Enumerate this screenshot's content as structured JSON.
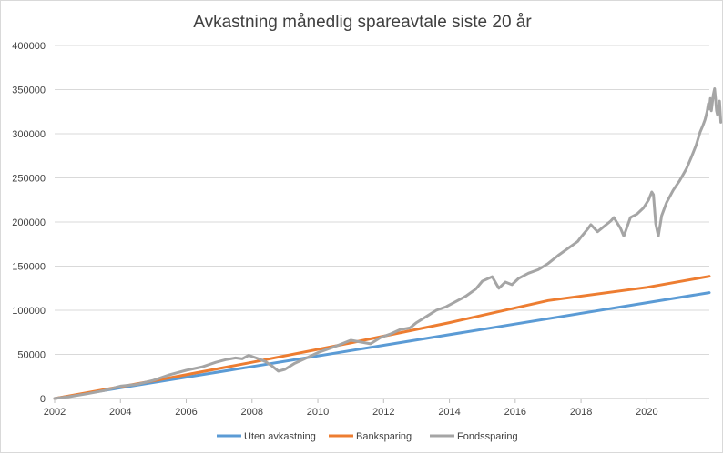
{
  "chart_data": {
    "type": "line",
    "title": "Avkastning månedlig spareavtale siste 20 år",
    "xlabel": "",
    "ylabel": "",
    "xlim": [
      2002,
      2021.9
    ],
    "ylim": [
      0,
      400000
    ],
    "x_ticks": [
      2002,
      2004,
      2006,
      2008,
      2010,
      2012,
      2014,
      2016,
      2018,
      2020
    ],
    "y_ticks": [
      0,
      50000,
      100000,
      150000,
      200000,
      250000,
      300000,
      350000,
      400000
    ],
    "grid": "horizontal",
    "legend_position": "bottom",
    "series": [
      {
        "name": "Uten avkastning",
        "color": "#5b9bd5",
        "points": [
          [
            2002,
            0
          ],
          [
            2021.9,
            120000
          ]
        ]
      },
      {
        "name": "Banksparing",
        "color": "#ed7d31",
        "points": [
          [
            2002,
            0
          ],
          [
            2005,
            20000
          ],
          [
            2008,
            41000
          ],
          [
            2011,
            63000
          ],
          [
            2014,
            86000
          ],
          [
            2017,
            111000
          ],
          [
            2020,
            126000
          ],
          [
            2021.9,
            138500
          ]
        ]
      },
      {
        "name": "Fondssparing",
        "color": "#a5a5a5",
        "points": [
          [
            2002,
            0
          ],
          [
            2002.5,
            2500
          ],
          [
            2003,
            5500
          ],
          [
            2003.5,
            9000
          ],
          [
            2003.8,
            12000
          ],
          [
            2004,
            14000
          ],
          [
            2004.5,
            16000
          ],
          [
            2005,
            20500
          ],
          [
            2005.5,
            27000
          ],
          [
            2006,
            32000
          ],
          [
            2006.5,
            36000
          ],
          [
            2006.9,
            41000
          ],
          [
            2007.2,
            44000
          ],
          [
            2007.5,
            46000
          ],
          [
            2007.7,
            45000
          ],
          [
            2007.9,
            49000
          ],
          [
            2008.2,
            45000
          ],
          [
            2008.4,
            42000
          ],
          [
            2008.6,
            37000
          ],
          [
            2008.8,
            31000
          ],
          [
            2009,
            33000
          ],
          [
            2009.3,
            40000
          ],
          [
            2009.6,
            45000
          ],
          [
            2010,
            52000
          ],
          [
            2010.3,
            56000
          ],
          [
            2010.6,
            60000
          ],
          [
            2010.8,
            63000
          ],
          [
            2011,
            66000
          ],
          [
            2011.3,
            64000
          ],
          [
            2011.6,
            62000
          ],
          [
            2011.9,
            69000
          ],
          [
            2012.2,
            73000
          ],
          [
            2012.5,
            78000
          ],
          [
            2012.8,
            80000
          ],
          [
            2013,
            86000
          ],
          [
            2013.3,
            93000
          ],
          [
            2013.6,
            100000
          ],
          [
            2013.9,
            104000
          ],
          [
            2014.2,
            110000
          ],
          [
            2014.5,
            116000
          ],
          [
            2014.8,
            124000
          ],
          [
            2015,
            133000
          ],
          [
            2015.3,
            138000
          ],
          [
            2015.5,
            125000
          ],
          [
            2015.7,
            132000
          ],
          [
            2015.9,
            129000
          ],
          [
            2016.1,
            136000
          ],
          [
            2016.4,
            142000
          ],
          [
            2016.7,
            146000
          ],
          [
            2017,
            153000
          ],
          [
            2017.3,
            162000
          ],
          [
            2017.6,
            170000
          ],
          [
            2017.9,
            178000
          ],
          [
            2018,
            183000
          ],
          [
            2018.2,
            192000
          ],
          [
            2018.3,
            197000
          ],
          [
            2018.5,
            189000
          ],
          [
            2018.7,
            195000
          ],
          [
            2018.9,
            201000
          ],
          [
            2019,
            205000
          ],
          [
            2019.2,
            193000
          ],
          [
            2019.3,
            184000
          ],
          [
            2019.5,
            205000
          ],
          [
            2019.7,
            209000
          ],
          [
            2019.9,
            216000
          ],
          [
            2020.05,
            225000
          ],
          [
            2020.15,
            234000
          ],
          [
            2020.2,
            231000
          ],
          [
            2020.27,
            198000
          ],
          [
            2020.35,
            184000
          ],
          [
            2020.45,
            207000
          ],
          [
            2020.6,
            222000
          ],
          [
            2020.8,
            236000
          ],
          [
            2021,
            247000
          ],
          [
            2021.2,
            260000
          ],
          [
            2021.35,
            273000
          ],
          [
            2021.5,
            287000
          ],
          [
            2021.62,
            302000
          ],
          [
            2021.7,
            309000
          ],
          [
            2021.77,
            316000
          ],
          [
            2021.83,
            325000
          ],
          [
            2021.87,
            334000
          ],
          [
            2021.9,
            328000
          ],
          [
            2021.93,
            340000
          ],
          [
            2021.96,
            326000
          ],
          [
            2021.99,
            335000
          ],
          [
            2022.02,
            344000
          ],
          [
            2022.06,
            351000
          ],
          [
            2022.09,
            339000
          ],
          [
            2022.12,
            326000
          ],
          [
            2022.15,
            321000
          ],
          [
            2022.18,
            331000
          ],
          [
            2022.21,
            337000
          ],
          [
            2022.25,
            313000
          ]
        ]
      }
    ]
  }
}
